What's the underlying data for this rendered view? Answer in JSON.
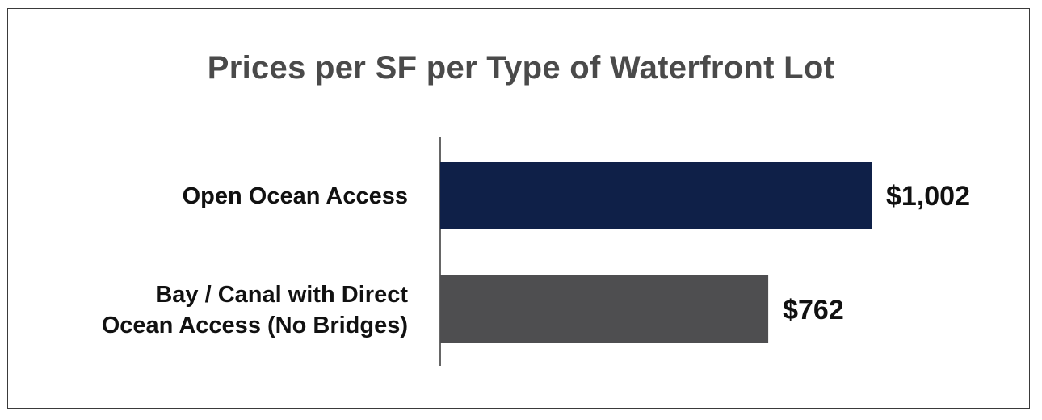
{
  "chart_data": {
    "type": "bar",
    "orientation": "horizontal",
    "title": "Prices per SF per Type of Waterfront Lot",
    "categories": [
      [
        "Open Ocean Access"
      ],
      [
        "Bay / Canal with Direct",
        "Ocean Access (No Bridges)"
      ]
    ],
    "values": [
      1002,
      762
    ],
    "value_labels": [
      "$1,002",
      "$762"
    ],
    "colors": [
      "#0f2048",
      "#4e4e50"
    ],
    "xlim": [
      0,
      1002
    ],
    "grid": false,
    "legend": "none"
  }
}
